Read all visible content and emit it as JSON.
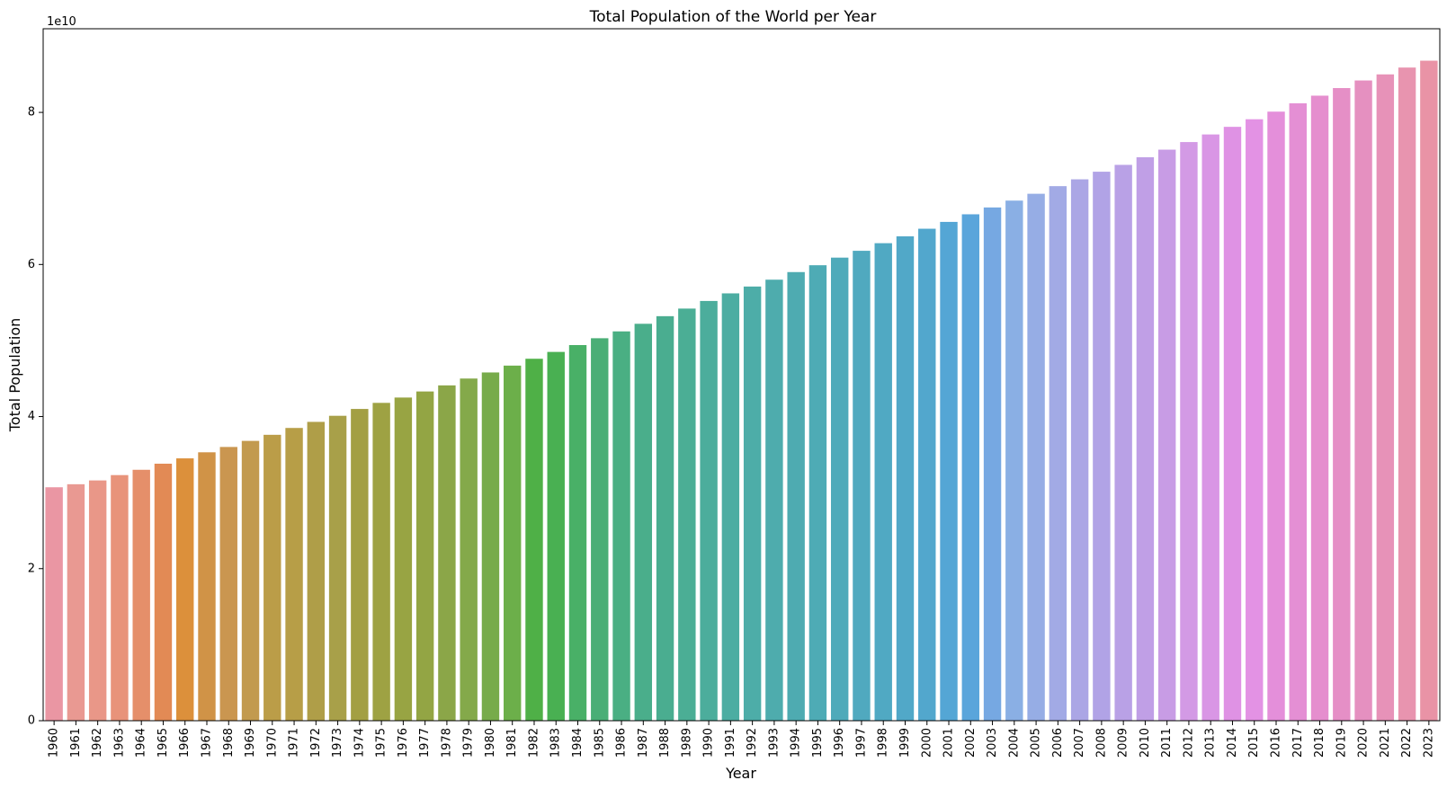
{
  "chart_data": {
    "type": "bar",
    "title": "Total Population of the World per Year",
    "xlabel": "Year",
    "ylabel": "Total Population",
    "y_offset_label": "1e10",
    "y_scale_factor": 10000000000,
    "ylim": [
      0,
      91000000000
    ],
    "y_ticks": [
      0,
      20000000000,
      40000000000,
      60000000000,
      80000000000
    ],
    "y_tick_labels": [
      "0",
      "2",
      "4",
      "6",
      "8"
    ],
    "grid": false,
    "legend": "none",
    "categories": [
      "1960",
      "1961",
      "1962",
      "1963",
      "1964",
      "1965",
      "1966",
      "1967",
      "1968",
      "1969",
      "1970",
      "1971",
      "1972",
      "1973",
      "1974",
      "1975",
      "1976",
      "1977",
      "1978",
      "1979",
      "1980",
      "1981",
      "1982",
      "1983",
      "1984",
      "1985",
      "1986",
      "1987",
      "1988",
      "1989",
      "1990",
      "1991",
      "1992",
      "1993",
      "1994",
      "1995",
      "1996",
      "1997",
      "1998",
      "1999",
      "2000",
      "2001",
      "2002",
      "2003",
      "2004",
      "2005",
      "2006",
      "2007",
      "2008",
      "2009",
      "2010",
      "2011",
      "2012",
      "2013",
      "2014",
      "2015",
      "2016",
      "2017",
      "2018",
      "2019",
      "2020",
      "2021",
      "2022",
      "2023"
    ],
    "values": [
      30700000000,
      31100000000,
      31600000000,
      32300000000,
      33000000000,
      33800000000,
      34500000000,
      35300000000,
      36000000000,
      36800000000,
      37600000000,
      38500000000,
      39300000000,
      40100000000,
      41000000000,
      41800000000,
      42500000000,
      43300000000,
      44100000000,
      45000000000,
      45800000000,
      46700000000,
      47600000000,
      48500000000,
      49400000000,
      50300000000,
      51200000000,
      52200000000,
      53200000000,
      54200000000,
      55200000000,
      56200000000,
      57100000000,
      58000000000,
      59000000000,
      59900000000,
      60900000000,
      61800000000,
      62800000000,
      63700000000,
      64700000000,
      65600000000,
      66600000000,
      67500000000,
      68400000000,
      69300000000,
      70300000000,
      71200000000,
      72200000000,
      73100000000,
      74100000000,
      75100000000,
      76100000000,
      77100000000,
      78100000000,
      79100000000,
      80100000000,
      81200000000,
      82200000000,
      83200000000,
      84200000000,
      85000000000,
      85900000000,
      86800000000
    ],
    "colors": [
      "#ea96a3",
      "#e99992",
      "#e99788",
      "#e8937a",
      "#e58f6a",
      "#e28a55",
      "#dc903b",
      "#d09347",
      "#ca9650",
      "#c29a4f",
      "#bb9d48",
      "#b79e47",
      "#af9e48",
      "#a8a049",
      "#a39f43",
      "#9ea243",
      "#98a443",
      "#93a544",
      "#8ba648",
      "#84a94a",
      "#77ab4a",
      "#6caf4a",
      "#4fb047",
      "#49b052",
      "#49b067",
      "#4aae76",
      "#4aaf83",
      "#4aae8b",
      "#4aad90",
      "#4bae95",
      "#4cad9c",
      "#4cada2",
      "#4dada8",
      "#4eacad",
      "#4eabb1",
      "#4eabb5",
      "#4faaba",
      "#50a9bf",
      "#50a9c3",
      "#51a8c8",
      "#52a7cd",
      "#54a6d5",
      "#5aa5db",
      "#76a8e2",
      "#8aafe4",
      "#96ade5",
      "#a2aae5",
      "#aba6e5",
      "#b1a3e6",
      "#b9a1e6",
      "#c09fe6",
      "#c89ce5",
      "#d39ae5",
      "#d996e5",
      "#df92e4",
      "#e392e4",
      "#e48fda",
      "#e48fd4",
      "#e58ece",
      "#e58fc6",
      "#e590c0",
      "#e792b8",
      "#e894af",
      "#e993a6"
    ]
  }
}
